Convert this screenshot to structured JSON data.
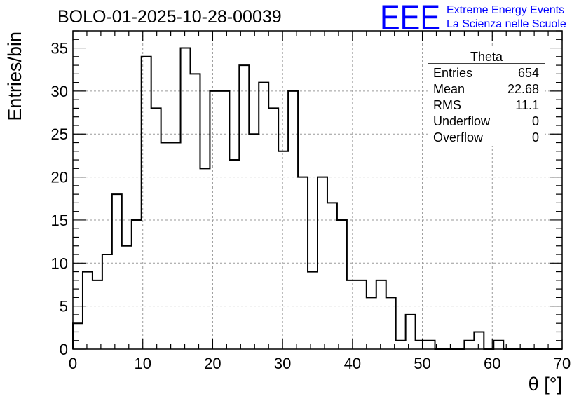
{
  "chart_data": {
    "type": "bar",
    "title": "BOLO-01-2025-10-28-00039",
    "xlabel": "θ [°]",
    "ylabel": "Entries/bin",
    "xlim": [
      0,
      70
    ],
    "ylim": [
      0,
      37
    ],
    "grid": true,
    "bin_width": 1.4,
    "xticks": [
      0,
      10,
      20,
      30,
      40,
      50,
      60,
      70
    ],
    "yticks": [
      0,
      5,
      10,
      15,
      20,
      25,
      30,
      35
    ],
    "values": [
      3,
      9,
      8,
      11,
      18,
      12,
      15,
      34,
      28,
      24,
      24,
      35,
      32,
      21,
      30,
      30,
      22,
      33,
      25,
      31,
      28,
      23,
      30,
      20,
      9,
      20,
      17,
      15,
      8,
      8,
      6,
      8,
      6,
      1,
      4,
      1,
      1,
      0,
      0,
      0,
      1,
      2,
      0,
      1,
      0,
      0,
      0,
      0,
      0,
      0
    ],
    "stats": {
      "name": "Theta",
      "rows": [
        {
          "label": "Entries",
          "value": "654"
        },
        {
          "label": "Mean",
          "value": "22.68"
        },
        {
          "label": "RMS",
          "value": "11.1"
        },
        {
          "label": "Underflow",
          "value": "0"
        },
        {
          "label": "Overflow",
          "value": "0"
        }
      ]
    }
  },
  "logo": {
    "mark": "EEE",
    "line1": "Extreme Energy Events",
    "line2": "La Scienza nelle Scuole"
  },
  "colors": {
    "histogram": "#000000",
    "grid": "#9a9a9a",
    "logo": "#0000ff"
  }
}
